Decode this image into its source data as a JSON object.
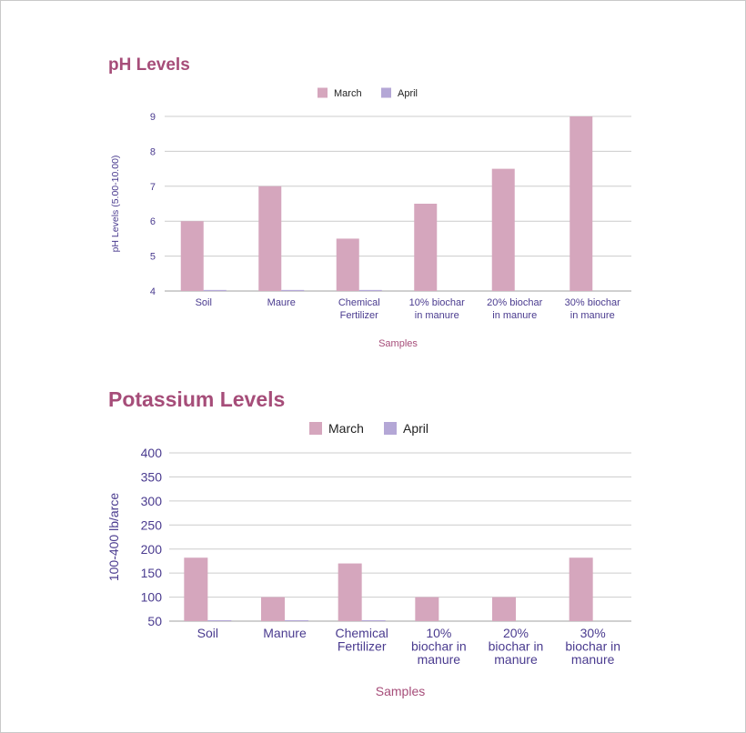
{
  "colors": {
    "march": "#d5a6bd",
    "april": "#b4a7d6",
    "title": "#a64d79",
    "axis_text": "#4a3b8f",
    "grid": "#cccccc"
  },
  "chart_data": [
    {
      "type": "bar",
      "title": "pH Levels",
      "xlabel": "Samples",
      "ylabel": "pH Levels (5.00-10.00)",
      "ylim": [
        4,
        9
      ],
      "yticks": [
        "4",
        "5",
        "6",
        "7",
        "8",
        "9"
      ],
      "grid": true,
      "legend": "top-center",
      "categories": [
        [
          "Soil"
        ],
        [
          "Maure"
        ],
        [
          "Chemical",
          "Fertilizer"
        ],
        [
          "10% biochar",
          "in manure"
        ],
        [
          "20% biochar",
          "in manure"
        ],
        [
          "30% biochar",
          "in manure"
        ]
      ],
      "series": [
        {
          "name": "March",
          "values": [
            6,
            7,
            5.5,
            6.5,
            7.5,
            9
          ]
        },
        {
          "name": "April",
          "values": [
            4.03,
            4.03,
            4.03,
            null,
            null,
            null
          ]
        }
      ]
    },
    {
      "type": "bar",
      "title": "Potassium Levels",
      "xlabel": "Samples",
      "ylabel": "100-400 lb/arce",
      "ylim": [
        50,
        400
      ],
      "yticks": [
        "50",
        "100",
        "150",
        "200",
        "250",
        "300",
        "350",
        "400"
      ],
      "grid": true,
      "legend": "top-center",
      "categories": [
        [
          "Soil"
        ],
        [
          "Manure"
        ],
        [
          "Chemical",
          "Fertilizer"
        ],
        [
          "10%",
          "biochar in",
          "manure"
        ],
        [
          "20%",
          "biochar in",
          "manure"
        ],
        [
          "30%",
          "biochar in",
          "manure"
        ]
      ],
      "series": [
        {
          "name": "March",
          "values": [
            182,
            100,
            170,
            100,
            100,
            182
          ]
        },
        {
          "name": "April",
          "values": [
            52,
            52,
            52,
            null,
            null,
            null
          ]
        }
      ]
    }
  ]
}
